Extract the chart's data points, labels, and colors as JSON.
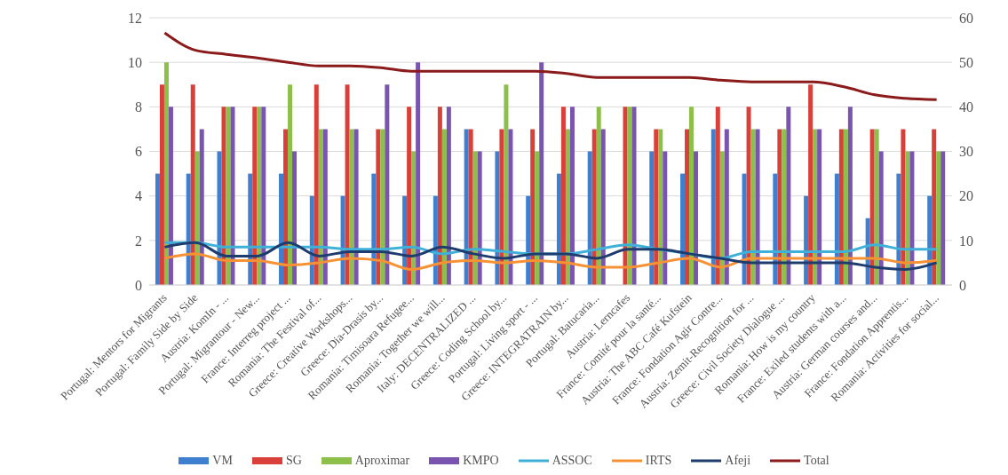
{
  "chart_data": {
    "type": "bar",
    "categories": [
      "Portugal: Mentors for Migrants",
      "Portugal: Family Side by Side",
      "Austria: KomIn - ...",
      "Portugal: Migrantour - New...",
      "France: Interreg project ...",
      "Romania: The Festival of...",
      "Greece: Creative Workshops...",
      "Greece: Dia-Drasis by...",
      "Romania: Timisoara Refugee...",
      "Romania: Together we will...",
      "Italy: DECENTRALIZED ...",
      "Greece: Coding School by...",
      "Portugal: Living sport - ...",
      "Greece: INTEGRATRAIN by...",
      "Portugal: Batucaria...",
      "Austria: Lerncafes",
      "France: Comité pour la santé...",
      "Austria: The ABC Café Kufstein",
      "France: Fondation Agir Contre...",
      "Austria: Zemit-Recognition for ...",
      "Greece: Civil Society Dialogue ...",
      "Romania: How is my country",
      "France: Exiled students with a...",
      "Austria: German courses and...",
      "France: Fondation Apprentis...",
      "Romania: Activities for social..."
    ],
    "series": [
      {
        "name": "VM",
        "color": "#3f7fd0",
        "values": [
          5,
          5,
          6,
          5,
          5,
          4,
          4,
          5,
          4,
          4,
          7,
          6,
          4,
          5,
          6,
          null,
          6,
          5,
          7,
          5,
          5,
          4,
          5,
          3,
          5,
          4
        ]
      },
      {
        "name": "SG",
        "color": "#d9403a",
        "values": [
          9,
          9,
          8,
          8,
          7,
          9,
          9,
          7,
          8,
          8,
          7,
          7,
          7,
          8,
          7,
          8,
          7,
          7,
          8,
          8,
          7,
          9,
          7,
          7,
          7,
          7
        ]
      },
      {
        "name": "Aproximar",
        "color": "#8dc04a",
        "values": [
          10,
          6,
          8,
          8,
          9,
          7,
          7,
          7,
          6,
          7,
          6,
          9,
          6,
          7,
          8,
          8,
          7,
          8,
          6,
          7,
          7,
          7,
          7,
          7,
          6,
          6
        ]
      },
      {
        "name": "KMPO",
        "color": "#7a55b0",
        "values": [
          8,
          7,
          8,
          8,
          6,
          7,
          7,
          9,
          10,
          8,
          6,
          7,
          10,
          8,
          7,
          8,
          6,
          6,
          7,
          7,
          8,
          7,
          8,
          6,
          6,
          6
        ]
      },
      {
        "name": "ASSOC",
        "type": "line",
        "color": "#3fb0d8",
        "values": [
          1.9,
          1.9,
          1.7,
          1.7,
          1.7,
          1.7,
          1.6,
          1.6,
          1.7,
          1.4,
          1.6,
          1.5,
          1.4,
          1.4,
          1.6,
          1.8,
          1.6,
          1.4,
          1.2,
          1.5,
          1.5,
          1.5,
          1.5,
          1.8,
          1.6,
          1.6
        ]
      },
      {
        "name": "IRTS",
        "type": "line",
        "color": "#f79234",
        "values": [
          1.2,
          1.4,
          1.1,
          1.1,
          0.9,
          1.0,
          1.2,
          1.1,
          0.7,
          1.0,
          1.1,
          1.0,
          1.1,
          1.0,
          0.8,
          0.8,
          1.0,
          1.2,
          0.8,
          1.2,
          1.2,
          1.2,
          1.2,
          1.2,
          1.0,
          1.1
        ]
      },
      {
        "name": "Afeji",
        "type": "line",
        "color": "#1f3c6e",
        "values": [
          1.7,
          1.9,
          1.3,
          1.3,
          1.9,
          1.3,
          1.5,
          1.5,
          1.3,
          1.7,
          1.4,
          1.2,
          1.4,
          1.4,
          1.2,
          1.6,
          1.6,
          1.4,
          1.2,
          1.0,
          1.0,
          1.0,
          1.0,
          0.8,
          0.7,
          1.0
        ]
      },
      {
        "name": "Total",
        "type": "line",
        "axis": "y2",
        "color": "#8b1a1a",
        "values": [
          56.6,
          52.7,
          51.8,
          51,
          50,
          49.2,
          49.2,
          48.8,
          48,
          48,
          48,
          48,
          48,
          47.5,
          46.6,
          46.6,
          46.6,
          46.6,
          46,
          45.6,
          45.6,
          45.6,
          44.5,
          42.7,
          41.9,
          41.6
        ]
      }
    ],
    "ylim": [
      0,
      12
    ],
    "yticks": [
      0,
      2,
      4,
      6,
      8,
      10,
      12
    ],
    "y2lim": [
      0,
      60
    ],
    "y2ticks": [
      0,
      10,
      20,
      30,
      40,
      50,
      60
    ],
    "grid": "y",
    "legend": "bottom",
    "marker": "none",
    "line_style": "solid"
  }
}
